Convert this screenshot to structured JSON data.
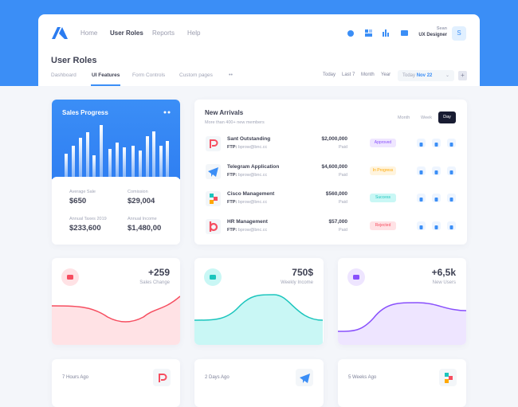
{
  "nav": {
    "items": [
      "Home",
      "User Roles",
      "Reports",
      "Help"
    ],
    "user": {
      "name": "Sean",
      "role": "UX Designer",
      "initial": "S"
    }
  },
  "page": {
    "title": "User Roles",
    "tabs": [
      "Dashboard",
      "UI Features",
      "Form Controls",
      "Custom pages"
    ],
    "filters": [
      "Today",
      "Last 7",
      "Month",
      "Year"
    ],
    "date_select": {
      "label": "Today",
      "value": "Nov 22"
    }
  },
  "sales_progress": {
    "title": "Sales Progress",
    "stats": [
      {
        "label": "Average Sale",
        "value": "$650"
      },
      {
        "label": "Comission",
        "value": "$29,004"
      },
      {
        "label": "Annual Taxes 2019",
        "value": "$233,600"
      },
      {
        "label": "Annual Income",
        "value": "$1,480,00"
      }
    ]
  },
  "new_arrivals": {
    "title": "New Arrivals",
    "subtitle": "More than 400+ new members",
    "tabs": [
      "Month",
      "Week",
      "Day"
    ],
    "rows": [
      {
        "name": "Sant Outstanding",
        "ftp_label": "FTP:",
        "email": "bprow@bnc.cc",
        "amount": "$2,000,000",
        "status": "Paid",
        "badge": "Approved"
      },
      {
        "name": "Telegram Application",
        "ftp_label": "FTP:",
        "email": "bprow@bnc.cc",
        "amount": "$4,600,000",
        "status": "Paid",
        "badge": "In Progress"
      },
      {
        "name": "Cisco Management",
        "ftp_label": "FTP:",
        "email": "bprow@bnc.cc",
        "amount": "$560,000",
        "status": "Paid",
        "badge": "Success"
      },
      {
        "name": "HR Management",
        "ftp_label": "FTP:",
        "email": "bprow@bnc.cc",
        "amount": "$57,000",
        "status": "Paid",
        "badge": "Rejected"
      }
    ]
  },
  "stat_cards": [
    {
      "value": "+259",
      "label": "Sales Change"
    },
    {
      "value": "750$",
      "label": "Weekly Income"
    },
    {
      "value": "+6,5k",
      "label": "New Users"
    }
  ],
  "activity_cards": [
    {
      "time": "7 Hours Ago"
    },
    {
      "time": "2 Days Ago"
    },
    {
      "time": "5 Weeks Ago"
    }
  ]
}
